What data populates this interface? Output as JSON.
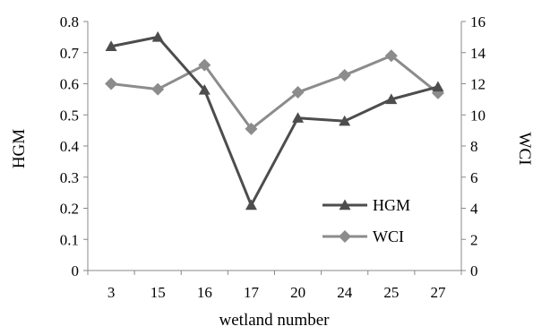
{
  "chart_data": {
    "type": "line",
    "categories": [
      "3",
      "15",
      "16",
      "17",
      "20",
      "24",
      "25",
      "27"
    ],
    "xlabel": "wetland number",
    "ylabel_left": "HGM",
    "ylabel_right": "WCI",
    "y_left": {
      "min": 0,
      "max": 0.8,
      "ticks": [
        "0",
        "0.1",
        "0.2",
        "0.3",
        "0.4",
        "0.5",
        "0.6",
        "0.7",
        "0.8"
      ]
    },
    "y_right": {
      "min": 0,
      "max": 16,
      "ticks": [
        "0",
        "2",
        "4",
        "6",
        "8",
        "10",
        "12",
        "14",
        "16"
      ]
    },
    "grid": false,
    "legend_position": "bottom-right",
    "series": [
      {
        "name": "HGM",
        "axis": "left",
        "marker": "triangle",
        "color": "#4d4d4d",
        "values": [
          0.72,
          0.75,
          0.58,
          0.21,
          0.49,
          0.48,
          0.55,
          0.59
        ]
      },
      {
        "name": "WCI",
        "axis": "right",
        "marker": "diamond",
        "color": "#8c8c8c",
        "values": [
          12.0,
          11.65,
          13.2,
          9.1,
          11.45,
          12.55,
          13.8,
          11.4
        ]
      }
    ]
  }
}
